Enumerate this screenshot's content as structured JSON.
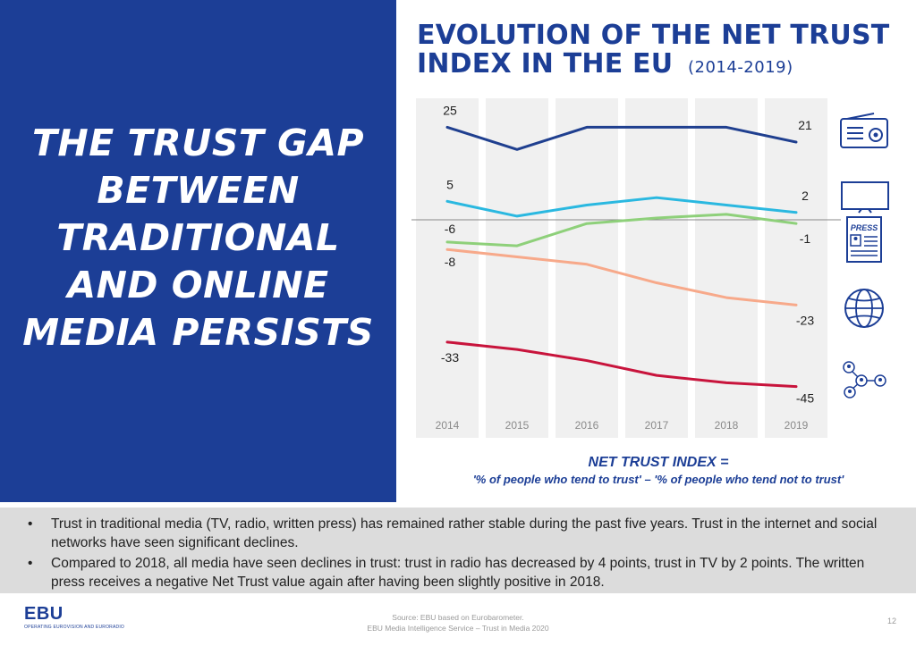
{
  "slide": {
    "headline": "THE TRUST GAP BETWEEN TRADITIONAL AND ONLINE MEDIA PERSISTS",
    "chart_title": "EVOLUTION OF THE NET TRUST INDEX IN THE EU",
    "chart_subtitle": "(2014-2019)",
    "definition_title": "NET TRUST INDEX =",
    "definition_formula": "'% of people who tend to trust' – '% of people who tend not to trust'",
    "bullets": [
      "Trust in traditional media (TV, radio, written press) has remained rather stable during the past five years. Trust in the internet and social networks have seen significant declines.",
      "Compared to 2018, all media have seen declines in trust: trust in radio has decreased by 4 points, trust in TV by 2 points. The written press receives a negative Net Trust value again after having been slightly positive in 2018."
    ],
    "logo_text": "EBU",
    "logo_tagline": "OPERATING EUROVISION AND EURORADIO",
    "source_line1": "Source: EBU based on Eurobarometer.",
    "source_line2": "EBU Media Intelligence Service – Trust in Media 2020",
    "page_number": "12",
    "press_badge": "PRESS"
  },
  "colors": {
    "brand_blue": "#1c3e96",
    "radio": "#1f3f8f",
    "tv": "#2ab8e0",
    "press": "#8ed07a",
    "internet": "#f7a98a",
    "social": "#c8143c",
    "column_bg": "#f0f0f0",
    "zero_line": "#888888"
  },
  "chart_data": {
    "type": "line",
    "title": "EVOLUTION OF THE NET TRUST INDEX IN THE EU",
    "subtitle": "(2014-2019)",
    "x": [
      "2014",
      "2015",
      "2016",
      "2017",
      "2018",
      "2019"
    ],
    "ylim": [
      -48,
      28
    ],
    "grid": false,
    "legend": "icons at right",
    "series": [
      {
        "key": "radio",
        "icon": "radio-icon",
        "values": [
          25,
          19,
          25,
          25,
          25,
          21
        ],
        "start_label": "25",
        "end_label": "21"
      },
      {
        "key": "tv",
        "icon": "tv-icon",
        "values": [
          5,
          1,
          4,
          6,
          4,
          2
        ],
        "start_label": "5",
        "end_label": "2"
      },
      {
        "key": "press",
        "icon": "press-icon",
        "values": [
          -6,
          -7,
          -1,
          0.5,
          1.5,
          -1
        ],
        "start_label": "-6",
        "end_label": "-1"
      },
      {
        "key": "internet",
        "icon": "globe-icon",
        "values": [
          -8,
          -10,
          -12,
          -17,
          -21,
          -23
        ],
        "start_label": "-8",
        "end_label": "-23"
      },
      {
        "key": "social",
        "icon": "social-network-icon",
        "values": [
          -33,
          -35,
          -38,
          -42,
          -44,
          -45
        ],
        "start_label": "-33",
        "end_label": "-45"
      }
    ]
  }
}
